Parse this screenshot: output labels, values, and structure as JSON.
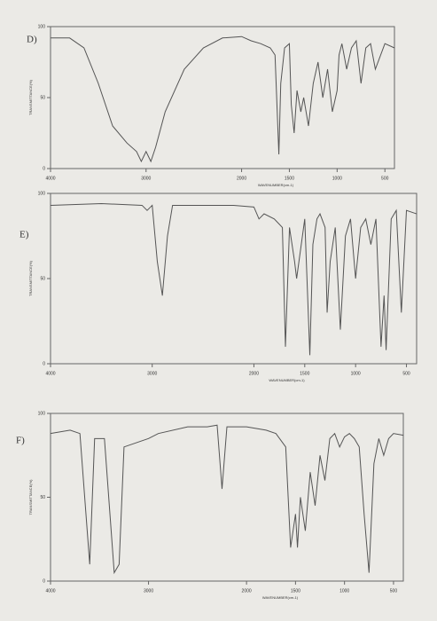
{
  "chart_data": [
    {
      "type": "line",
      "title": "D)",
      "xlabel": "WAVENUMBER(cm-1)",
      "ylabel": "TRANSMITTANCE(%)",
      "color": "#555555",
      "xlim": [
        4000,
        400
      ],
      "ylim": [
        0,
        100
      ],
      "xticks": [
        4000,
        3000,
        2000,
        1500,
        1000,
        500
      ],
      "yticks": [
        0,
        50,
        100
      ],
      "x": [
        4000,
        3800,
        3650,
        3500,
        3350,
        3200,
        3100,
        3050,
        3000,
        2950,
        2900,
        2800,
        2600,
        2400,
        2200,
        2000,
        1900,
        1800,
        1700,
        1650,
        1610,
        1590,
        1550,
        1500,
        1480,
        1450,
        1420,
        1380,
        1350,
        1300,
        1250,
        1200,
        1150,
        1100,
        1050,
        1000,
        980,
        950,
        900,
        850,
        800,
        750,
        700,
        650,
        600,
        500,
        400
      ],
      "values": [
        92,
        92,
        85,
        60,
        30,
        18,
        12,
        5,
        12,
        5,
        15,
        40,
        70,
        85,
        92,
        93,
        90,
        88,
        85,
        80,
        10,
        60,
        85,
        88,
        45,
        25,
        55,
        40,
        50,
        30,
        60,
        75,
        50,
        70,
        40,
        55,
        80,
        88,
        70,
        85,
        90,
        60,
        85,
        88,
        70,
        88,
        85
      ]
    },
    {
      "type": "line",
      "title": "E)",
      "xlabel": "WAVENUMBER(cm-1)",
      "ylabel": "TRANSMITTANCE(%)",
      "color": "#555555",
      "xlim": [
        4000,
        400
      ],
      "ylim": [
        0,
        100
      ],
      "xticks": [
        4000,
        3000,
        2000,
        1500,
        1000,
        500
      ],
      "yticks": [
        0,
        50,
        100
      ],
      "x": [
        4000,
        3500,
        3100,
        3050,
        3000,
        2950,
        2900,
        2850,
        2800,
        2200,
        2000,
        1950,
        1900,
        1800,
        1720,
        1690,
        1650,
        1600,
        1580,
        1500,
        1450,
        1420,
        1380,
        1350,
        1300,
        1280,
        1250,
        1200,
        1150,
        1100,
        1050,
        1000,
        950,
        900,
        850,
        800,
        750,
        720,
        700,
        650,
        600,
        550,
        500,
        400
      ],
      "values": [
        93,
        94,
        93,
        90,
        93,
        60,
        40,
        75,
        93,
        93,
        92,
        85,
        88,
        85,
        80,
        10,
        80,
        60,
        50,
        85,
        5,
        70,
        85,
        88,
        80,
        30,
        60,
        80,
        20,
        75,
        85,
        50,
        80,
        85,
        70,
        85,
        10,
        40,
        8,
        85,
        90,
        30,
        90,
        88
      ]
    },
    {
      "type": "line",
      "title": "F)",
      "xlabel": "WAVENUMBER(cm-1)",
      "ylabel": "TRANSMITTANCE(%)",
      "color": "#555555",
      "xlim": [
        4000,
        400
      ],
      "ylim": [
        0,
        100
      ],
      "xticks": [
        4000,
        3000,
        2000,
        1500,
        1000,
        500
      ],
      "yticks": [
        0,
        50,
        100
      ],
      "x": [
        4000,
        3800,
        3700,
        3600,
        3550,
        3450,
        3350,
        3300,
        3250,
        3000,
        2900,
        2600,
        2400,
        2300,
        2250,
        2200,
        2000,
        1800,
        1700,
        1600,
        1550,
        1500,
        1480,
        1450,
        1400,
        1350,
        1300,
        1250,
        1200,
        1150,
        1100,
        1050,
        1000,
        950,
        900,
        850,
        800,
        750,
        700,
        650,
        600,
        550,
        500,
        400
      ],
      "values": [
        88,
        90,
        88,
        10,
        85,
        85,
        5,
        10,
        80,
        85,
        88,
        92,
        92,
        93,
        55,
        92,
        92,
        90,
        88,
        80,
        20,
        40,
        20,
        50,
        30,
        65,
        45,
        75,
        60,
        85,
        88,
        80,
        86,
        88,
        85,
        80,
        40,
        5,
        70,
        85,
        75,
        85,
        88,
        87
      ]
    }
  ]
}
